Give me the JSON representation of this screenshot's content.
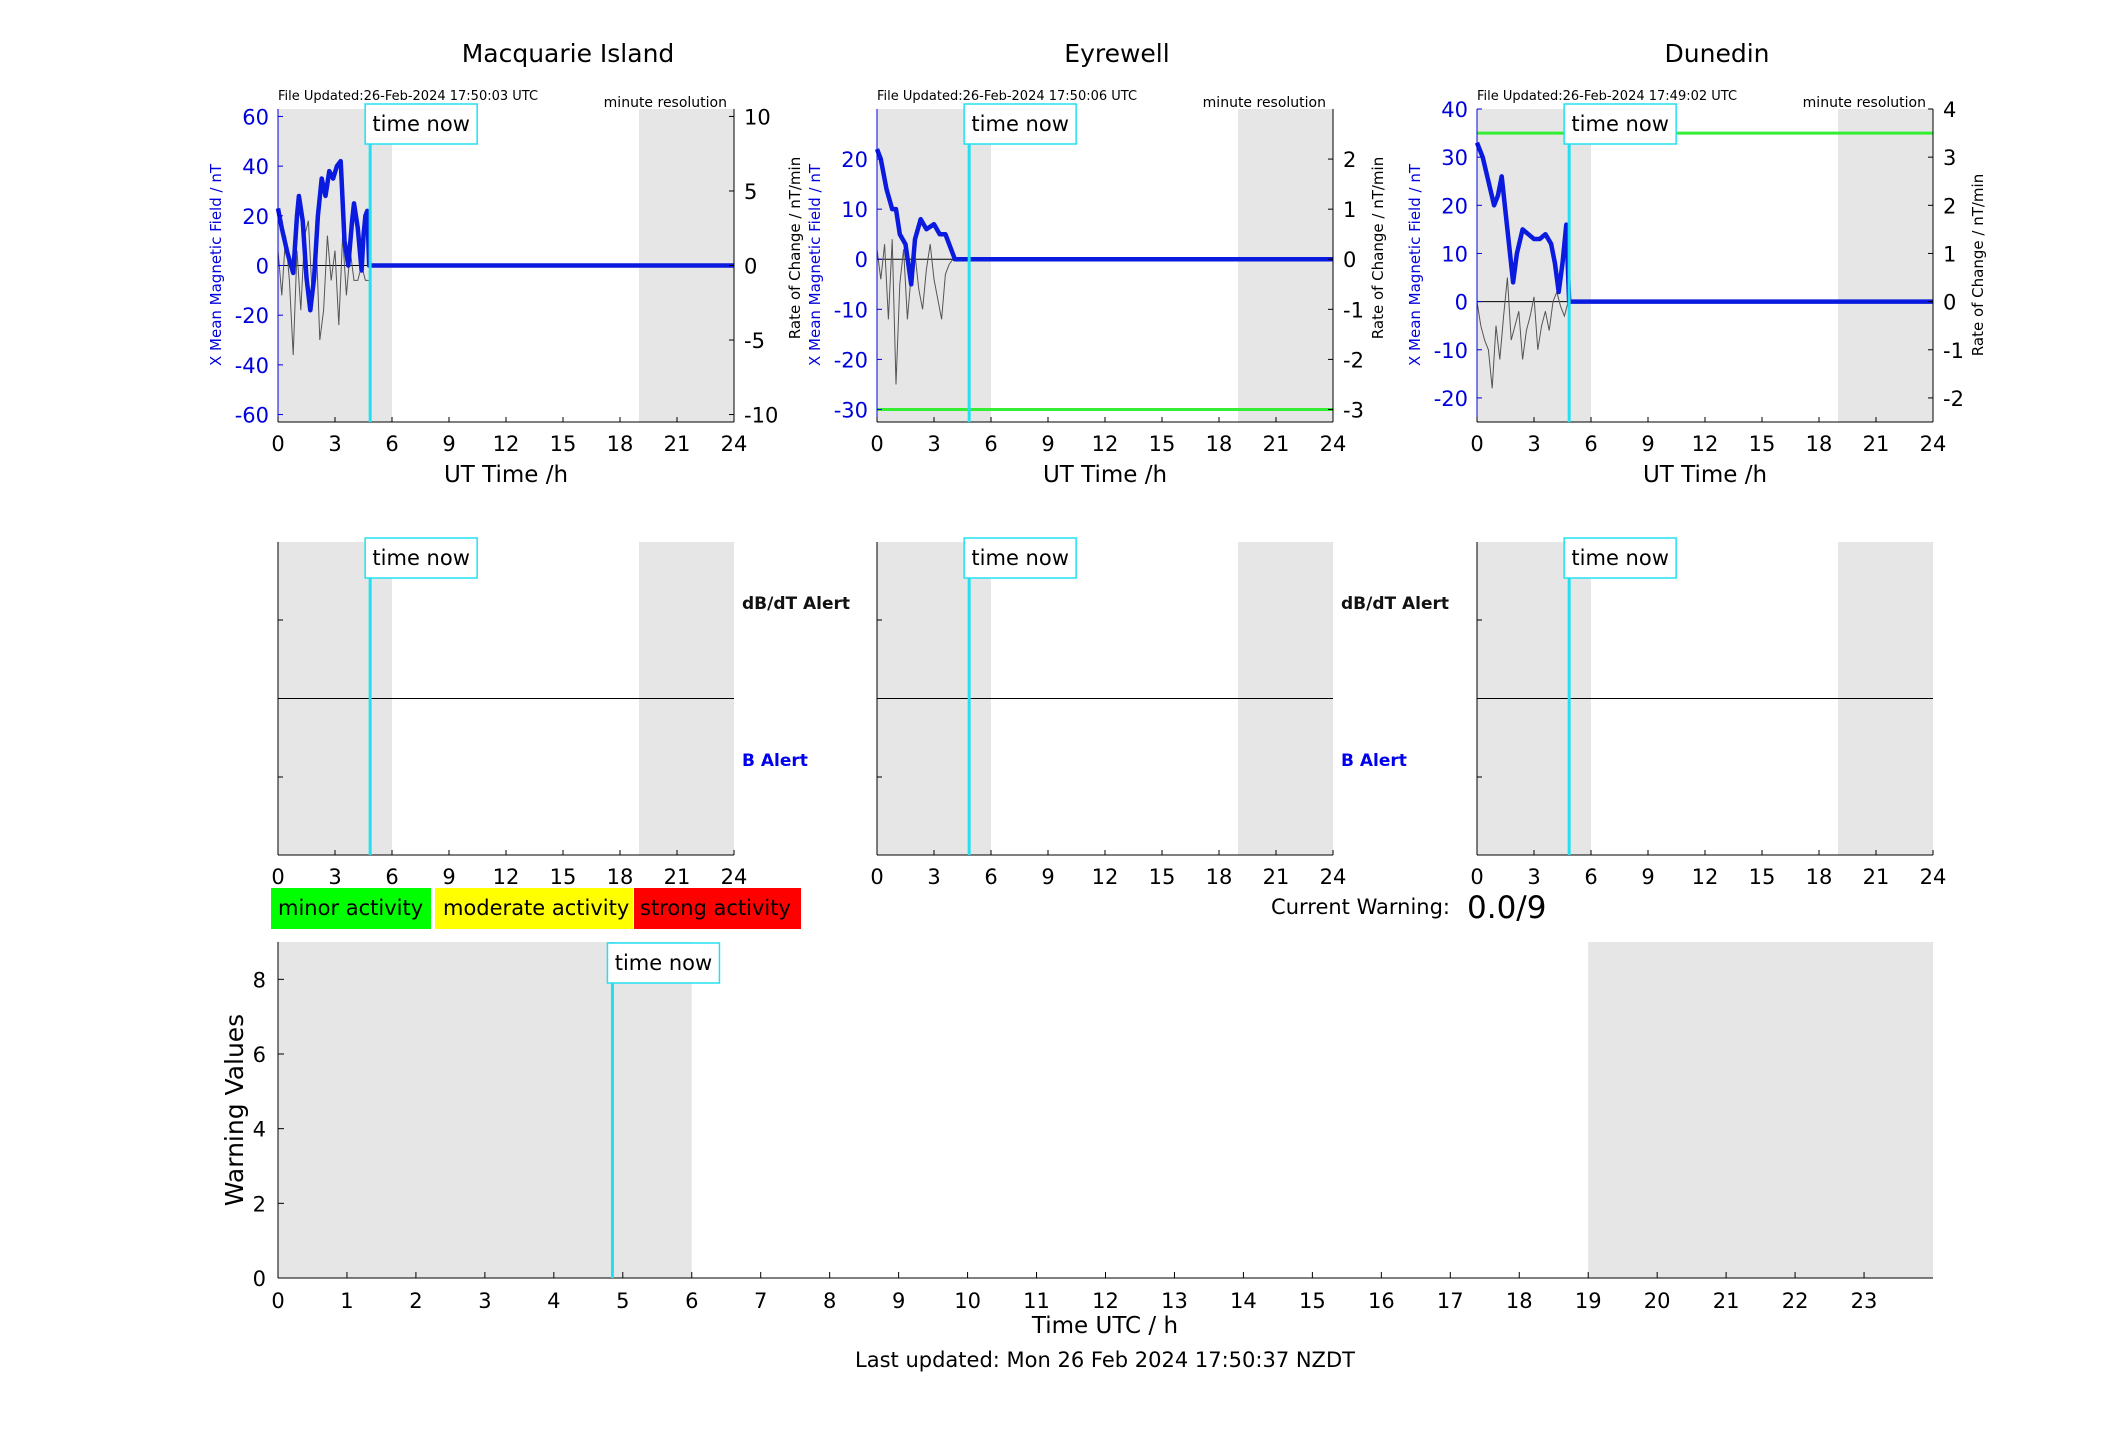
{
  "time_now_label": "time now",
  "time_now_h": 4.85,
  "resolution_label": "minute resolution",
  "x_ticks_24": [
    "0",
    "3",
    "6",
    "9",
    "12",
    "15",
    "18",
    "21",
    "24"
  ],
  "x_label_top": "UT Time /h",
  "left_ylabel": "X Mean Magnetic Field / nT",
  "right_ylabel": "Rate of Change / nT/min",
  "alert_labels": {
    "dbdt": "dB/dT Alert",
    "b": "B Alert"
  },
  "legend": {
    "minor": "minor activity",
    "moderate": "moderate activity",
    "strong": "strong activity"
  },
  "current_warning": {
    "label": "Current Warning:",
    "value": "0.0/9"
  },
  "bottom": {
    "ylabel": "Warning Values",
    "xlabel": "Time UTC / h"
  },
  "last_updated": "Last updated: Mon 26 Feb 2024 17:50:37 NZDT",
  "colors": {
    "field": "#0a1adf",
    "rate": "#555555",
    "now": "#22e0f0",
    "shade": "#e6e6e6",
    "threshold": "#33ee33",
    "minor": "#00ff00",
    "moderate": "#ffff00",
    "strong": "#ff0000"
  },
  "chart_data": [
    {
      "type": "line",
      "title": "Macquarie Island",
      "file_updated": "File Updated:26-Feb-2024 17:50:03 UTC",
      "ylim_left": [
        -63,
        63
      ],
      "yticks_left": [
        -60,
        -40,
        -20,
        0,
        20,
        40,
        60
      ],
      "ylim_right": [
        -10.5,
        10.5
      ],
      "yticks_right": [
        -10,
        -5,
        0,
        5,
        10
      ],
      "shaded_hours": [
        [
          0,
          6
        ],
        [
          19,
          24
        ]
      ],
      "field_series": {
        "x": [
          0,
          0.2,
          0.5,
          0.8,
          1,
          1.1,
          1.3,
          1.5,
          1.7,
          1.9,
          2.1,
          2.3,
          2.5,
          2.7,
          2.9,
          3.1,
          3.3,
          3.5,
          3.7,
          3.9,
          4.0,
          4.2,
          4.4,
          4.5,
          4.6,
          4.7,
          4.8,
          5,
          24
        ],
        "y": [
          23,
          15,
          5,
          -3,
          20,
          28,
          18,
          -5,
          -18,
          -5,
          20,
          35,
          28,
          38,
          35,
          40,
          42,
          10,
          0,
          18,
          25,
          15,
          -2,
          12,
          20,
          22,
          0,
          0,
          0
        ]
      },
      "rate_series": {
        "x": [
          0,
          0.2,
          0.4,
          0.6,
          0.8,
          1.0,
          1.2,
          1.4,
          1.6,
          1.8,
          2.0,
          2.2,
          2.4,
          2.6,
          2.8,
          3.0,
          3.2,
          3.4,
          3.6,
          3.8,
          4.0,
          4.2,
          4.4,
          4.6,
          4.8
        ],
        "y": [
          1,
          -2,
          2,
          -1,
          -6,
          1,
          -3,
          2,
          3,
          -2,
          2,
          -5,
          -3,
          2,
          -1,
          1,
          -4,
          2,
          -2,
          1,
          -1,
          -1,
          0,
          -1,
          -1
        ]
      },
      "threshold_right": [],
      "threshold_left": []
    },
    {
      "type": "line",
      "title": "Eyrewell",
      "file_updated": "File Updated:26-Feb-2024 17:50:06 UTC",
      "ylim_left": [
        -32.5,
        30
      ],
      "yticks_left": [
        -30,
        -20,
        -10,
        0,
        10,
        20
      ],
      "ylim_right": [
        -3.25,
        3
      ],
      "yticks_right": [
        -3,
        -2,
        -1,
        0,
        1,
        2
      ],
      "shaded_hours": [
        [
          0,
          6
        ],
        [
          19,
          24
        ]
      ],
      "field_series": {
        "x": [
          0,
          0.2,
          0.5,
          0.8,
          1.0,
          1.2,
          1.5,
          1.8,
          2.0,
          2.3,
          2.6,
          3.0,
          3.3,
          3.6,
          3.9,
          4.1,
          24
        ],
        "y": [
          22,
          20,
          14,
          10,
          10,
          5,
          3,
          -5,
          4,
          8,
          6,
          7,
          5,
          5,
          2,
          0,
          0
        ]
      },
      "rate_series": {
        "x": [
          0,
          0.2,
          0.4,
          0.6,
          0.8,
          1.0,
          1.2,
          1.4,
          1.6,
          1.8,
          2.0,
          2.2,
          2.4,
          2.6,
          2.8,
          3.0,
          3.2,
          3.4,
          3.6,
          3.8,
          4.0
        ],
        "y": [
          0.2,
          -0.4,
          0.3,
          -1.2,
          0.4,
          -2.5,
          -0.5,
          0.2,
          -1.2,
          -0.3,
          0.1,
          -0.6,
          -1,
          -0.2,
          0.3,
          -0.4,
          -0.8,
          -1.2,
          -0.3,
          -0.1,
          0
        ]
      },
      "threshold_left": [
        -30
      ],
      "threshold_right": [
        -3
      ]
    },
    {
      "type": "line",
      "title": "Dunedin",
      "file_updated": "File Updated:26-Feb-2024 17:49:02 UTC",
      "ylim_left": [
        -25,
        40
      ],
      "yticks_left": [
        -20,
        -10,
        0,
        10,
        20,
        30,
        40
      ],
      "ylim_right": [
        -2.5,
        4
      ],
      "yticks_right": [
        -2,
        -1,
        0,
        1,
        2,
        3,
        4
      ],
      "shaded_hours": [
        [
          0,
          6
        ],
        [
          19,
          24
        ]
      ],
      "field_series": {
        "x": [
          0,
          0.3,
          0.6,
          0.9,
          1.1,
          1.3,
          1.6,
          1.9,
          2.1,
          2.4,
          2.7,
          3.0,
          3.3,
          3.6,
          3.9,
          4.1,
          4.3,
          4.5,
          4.7,
          4.85,
          24
        ],
        "y": [
          33,
          30,
          25,
          20,
          22,
          26,
          15,
          4,
          10,
          15,
          14,
          13,
          13,
          14,
          12,
          8,
          2,
          8,
          16,
          0,
          0
        ]
      },
      "rate_series": {
        "x": [
          0,
          0.2,
          0.4,
          0.6,
          0.8,
          1.0,
          1.2,
          1.4,
          1.6,
          1.8,
          2.0,
          2.2,
          2.4,
          2.6,
          2.8,
          3.0,
          3.2,
          3.4,
          3.6,
          3.8,
          4.0,
          4.2,
          4.4,
          4.6,
          4.8
        ],
        "y": [
          0,
          -0.5,
          -0.8,
          -1,
          -1.8,
          -0.5,
          -1.2,
          -0.3,
          0.5,
          -0.8,
          -0.5,
          -0.2,
          -1.2,
          -0.6,
          -0.3,
          0.1,
          -1,
          -0.5,
          -0.2,
          -0.6,
          0,
          0.2,
          -0.1,
          -0.3,
          0
        ]
      },
      "threshold_left": [
        35
      ],
      "threshold_right": [
        3.5
      ]
    },
    {
      "type": "bar",
      "title": "",
      "xlabel": "Time UTC / h",
      "ylabel": "Warning Values",
      "xlim": [
        0,
        24
      ],
      "ylim": [
        0,
        9
      ],
      "xticks": [
        "0",
        "1",
        "2",
        "3",
        "4",
        "5",
        "6",
        "7",
        "8",
        "9",
        "10",
        "11",
        "12",
        "13",
        "14",
        "15",
        "16",
        "17",
        "18",
        "19",
        "20",
        "21",
        "22",
        "23"
      ],
      "yticks": [
        0,
        2,
        4,
        6,
        8
      ],
      "shaded_hours": [
        [
          0,
          6
        ],
        [
          19,
          24
        ]
      ],
      "values": []
    }
  ]
}
